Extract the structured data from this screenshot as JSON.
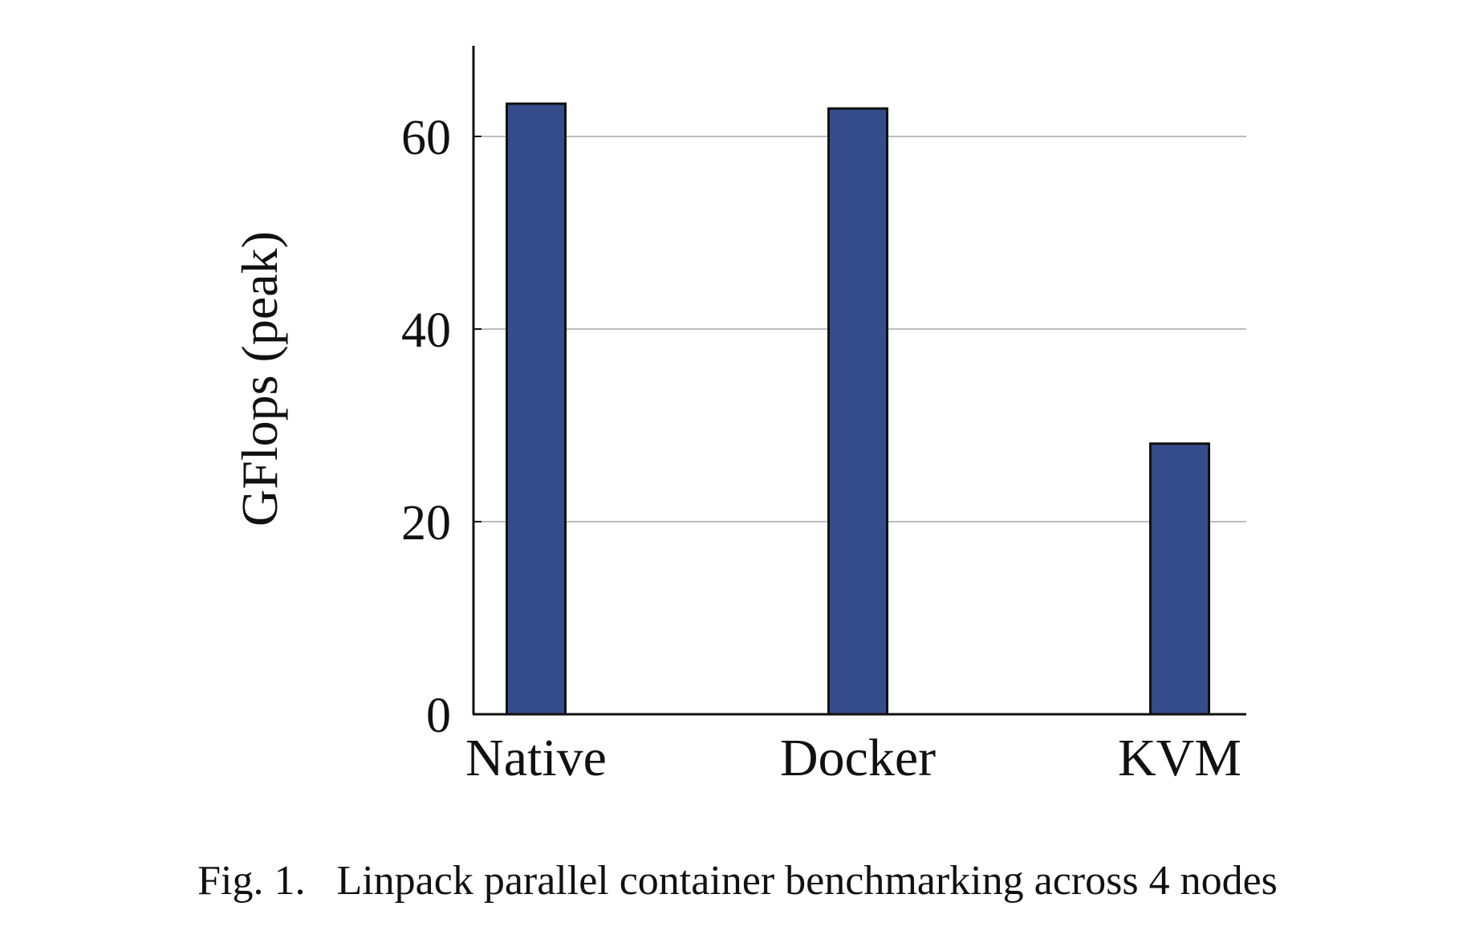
{
  "chart_data": {
    "type": "bar",
    "categories": [
      "Native",
      "Docker",
      "KVM"
    ],
    "values": [
      63.4,
      62.9,
      28.1
    ],
    "ylabel": "GFlops (peak)",
    "xlabel": "",
    "ylim": [
      0,
      70
    ],
    "yticks": [
      0,
      20,
      40,
      60
    ],
    "grid": true,
    "bar_color": "#344d8a"
  },
  "caption": "Fig. 1.   Linpack parallel container benchmarking across 4 nodes"
}
